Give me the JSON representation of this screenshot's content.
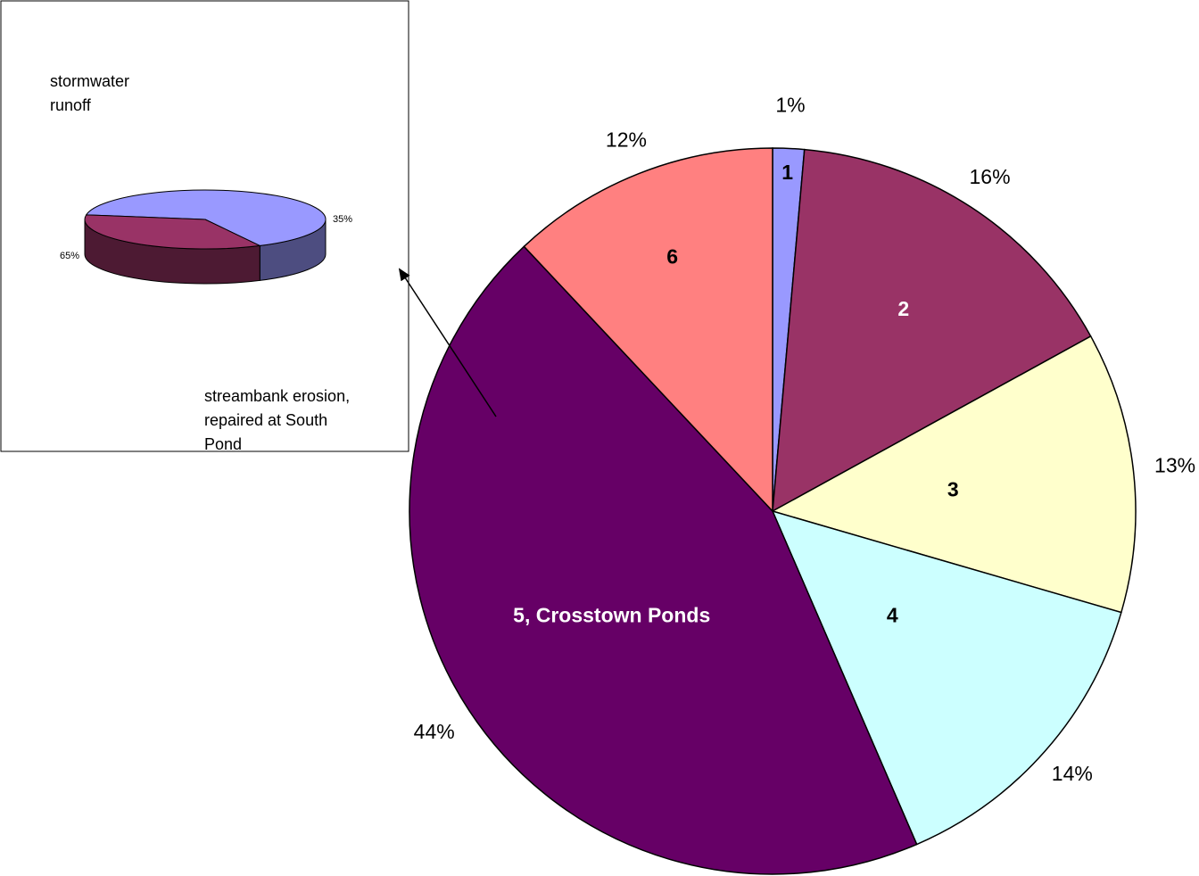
{
  "chart_data": [
    {
      "type": "pie",
      "title": "",
      "start_angle_deg": 0,
      "direction": "clockwise",
      "slices": [
        {
          "label": "1",
          "value": 1.4,
          "pct_label": "1%",
          "color": "#9999ff",
          "label_color": "#000000"
        },
        {
          "label": "2",
          "value": 15.6,
          "pct_label": "16%",
          "color": "#993366",
          "label_color": "#ffffff"
        },
        {
          "label": "3",
          "value": 12.5,
          "pct_label": "13%",
          "color": "#ffffcc",
          "label_color": "#000000"
        },
        {
          "label": "4",
          "value": 14.0,
          "pct_label": "14%",
          "color": "#ccffff",
          "label_color": "#000000"
        },
        {
          "label": "5, Crosstown Ponds",
          "value": 44.5,
          "pct_label": "44%",
          "color": "#660066",
          "label_color": "#ffffff"
        },
        {
          "label": "6",
          "value": 12.0,
          "pct_label": "12%",
          "color": "#ff8080",
          "label_color": "#000000"
        }
      ]
    },
    {
      "type": "pie",
      "style": "3d",
      "title": "",
      "slices": [
        {
          "label": "stormwater runoff",
          "value": 65,
          "pct_label": "65%",
          "color": "#9999ff"
        },
        {
          "label": "streambank erosion, repaired at South Pond",
          "value": 35,
          "pct_label": "35%",
          "color": "#993366"
        }
      ],
      "label_lines": {
        "stormwater": [
          "stormwater",
          "runoff"
        ],
        "streambank": [
          "streambank erosion,",
          "repaired at South",
          "Pond"
        ]
      }
    }
  ]
}
